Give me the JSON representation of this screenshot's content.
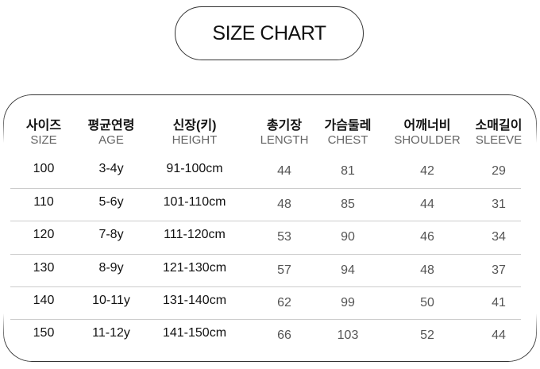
{
  "title": "SIZE CHART",
  "headers": [
    {
      "ko": "사이즈",
      "en": "SIZE"
    },
    {
      "ko": "평균연령",
      "en": "AGE"
    },
    {
      "ko": "신장(키)",
      "en": "HEIGHT"
    },
    {
      "ko": "총기장",
      "en": "LENGTH"
    },
    {
      "ko": "가슴둘레",
      "en": "CHEST"
    },
    {
      "ko": "어깨너비",
      "en": "SHOULDER"
    },
    {
      "ko": "소매길이",
      "en": "SLEEVE"
    }
  ],
  "rows": [
    [
      "100",
      "3-4y",
      "91-100cm",
      "44",
      "81",
      "42",
      "29"
    ],
    [
      "110",
      "5-6y",
      "101-110cm",
      "48",
      "85",
      "44",
      "31"
    ],
    [
      "120",
      "7-8y",
      "111-120cm",
      "53",
      "90",
      "46",
      "34"
    ],
    [
      "130",
      "8-9y",
      "121-130cm",
      "57",
      "94",
      "48",
      "37"
    ],
    [
      "140",
      "10-11y",
      "131-140cm",
      "62",
      "99",
      "50",
      "41"
    ],
    [
      "150",
      "11-12y",
      "141-150cm",
      "66",
      "103",
      "52",
      "44"
    ]
  ]
}
